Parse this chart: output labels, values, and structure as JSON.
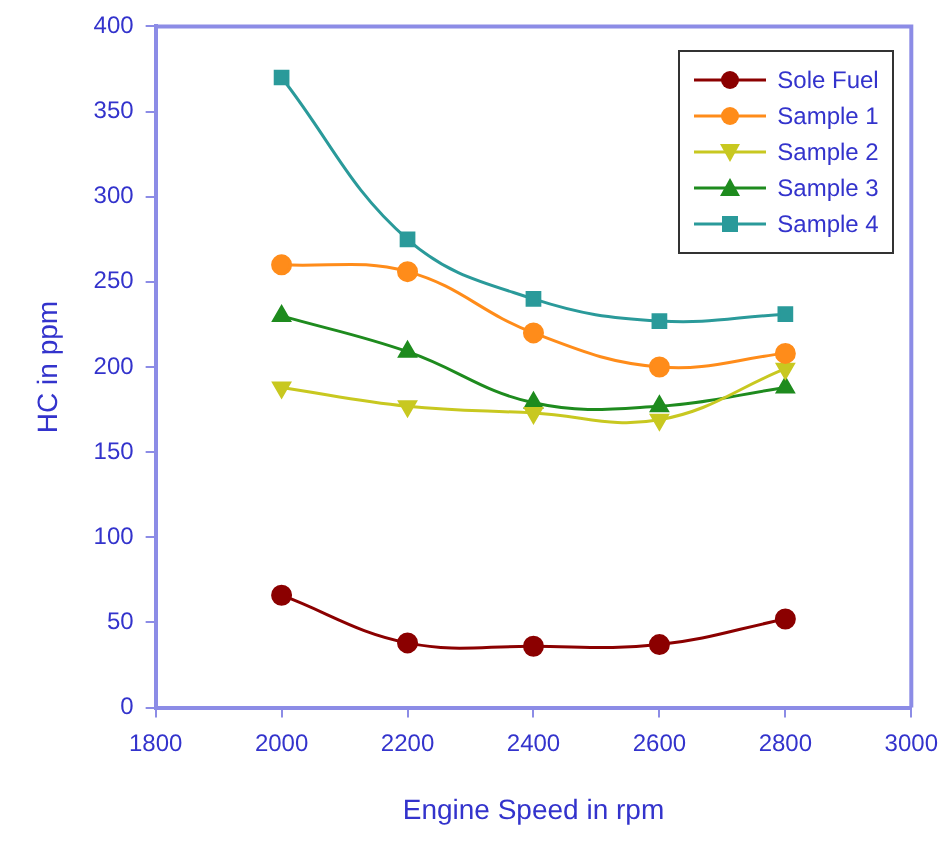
{
  "chart_data": {
    "type": "line",
    "xlabel": "Engine Speed in rpm",
    "ylabel": "HC in ppm",
    "x": [
      2000,
      2200,
      2400,
      2600,
      2800
    ],
    "xlim": [
      1800,
      3000
    ],
    "xticks": [
      1800,
      2000,
      2200,
      2400,
      2600,
      2800,
      3000
    ],
    "ylim": [
      0,
      400
    ],
    "yticks": [
      0,
      50,
      100,
      150,
      200,
      250,
      300,
      350,
      400
    ],
    "grid": false,
    "legend": "top right",
    "series": [
      {
        "name": "Sole Fuel",
        "color": "#8b0000",
        "marker": "circle",
        "values": [
          66,
          38,
          36,
          37,
          52
        ]
      },
      {
        "name": "Sample 1",
        "color": "#ff8c1a",
        "marker": "circle",
        "values": [
          260,
          256,
          220,
          200,
          208
        ]
      },
      {
        "name": "Sample 2",
        "color": "#c8c820",
        "marker": "triangle-down",
        "values": [
          188,
          177,
          173,
          169,
          199
        ]
      },
      {
        "name": "Sample 3",
        "color": "#1e8b1e",
        "marker": "triangle",
        "values": [
          230,
          209,
          179,
          177,
          188
        ]
      },
      {
        "name": "Sample 4",
        "color": "#2a9a9a",
        "marker": "square",
        "values": [
          370,
          275,
          240,
          227,
          231
        ]
      }
    ]
  }
}
